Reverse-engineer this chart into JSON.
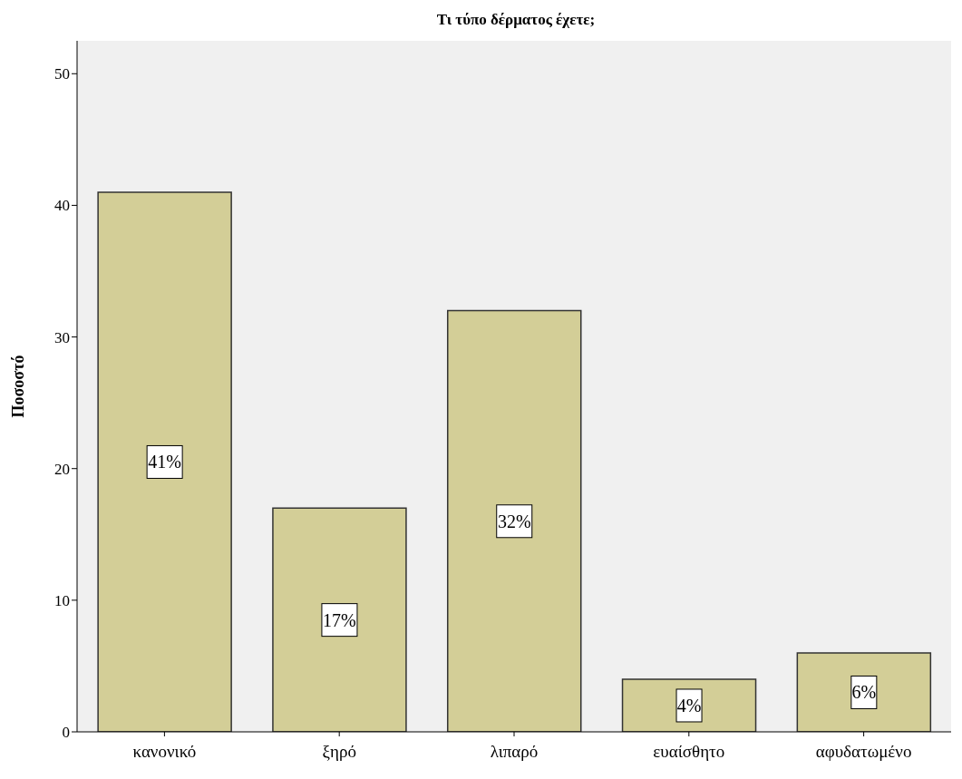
{
  "chart_data": {
    "type": "bar",
    "title": "Τι τύπο δέρματος έχετε;",
    "ylabel": "Ποσοστό",
    "categories": [
      "κανονικό",
      "ξηρό",
      "λιπαρό",
      "ευαίσθητο",
      "αφυδατωμένο"
    ],
    "values": [
      41,
      17,
      32,
      4,
      6
    ],
    "value_labels": [
      "41%",
      "17%",
      "32%",
      "4%",
      "6%"
    ],
    "color": "#d3ce97",
    "ylim": [
      0,
      52.5
    ],
    "yticks": [
      0,
      10,
      20,
      30,
      40,
      50
    ],
    "grid": false
  }
}
